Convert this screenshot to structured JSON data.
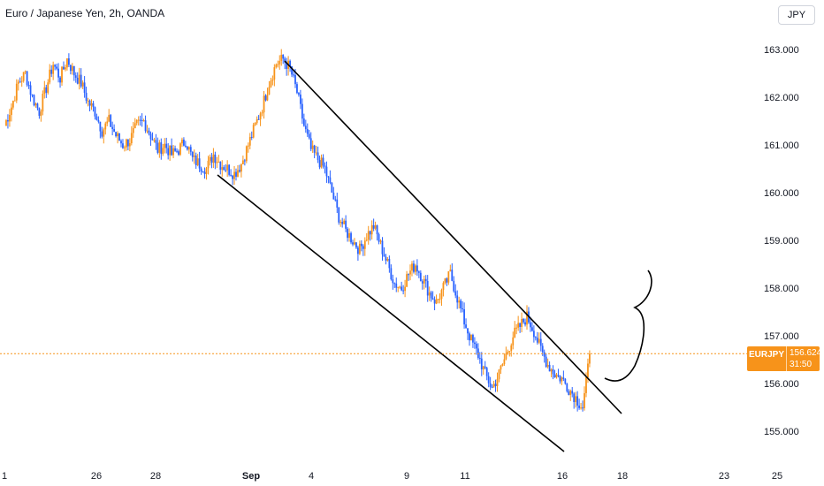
{
  "header": {
    "title": "Euro / Japanese Yen, 2h, OANDA"
  },
  "currency_button": {
    "label": "JPY"
  },
  "price_tag": {
    "symbol": "EURJPY",
    "price": "156.624",
    "countdown": "31:50"
  },
  "colors": {
    "up": "#f7931a",
    "down": "#2962ff",
    "trendline": "#000000",
    "price_line": "#f7931a",
    "axis_text": "#131722"
  },
  "chart_data": {
    "type": "candlestick",
    "symbol": "EURJPY",
    "timeframe": "2h",
    "last_price": 156.624,
    "y_ticks": [
      "163.000",
      "162.000",
      "161.000",
      "160.000",
      "159.000",
      "158.000",
      "157.000",
      "156.000",
      "155.000"
    ],
    "ylim": [
      154.7,
      163.5
    ],
    "x_ticks": [
      "1",
      "26",
      "28",
      "Sep",
      "4",
      "9",
      "11",
      "16",
      "18",
      "23",
      "25"
    ],
    "close_path": [
      [
        0,
        161.4
      ],
      [
        4,
        161.8
      ],
      [
        8,
        162.3
      ],
      [
        12,
        162.5
      ],
      [
        16,
        162.0
      ],
      [
        20,
        161.7
      ],
      [
        24,
        162.2
      ],
      [
        28,
        162.7
      ],
      [
        32,
        162.4
      ],
      [
        36,
        162.8
      ],
      [
        40,
        162.5
      ],
      [
        44,
        162.3
      ],
      [
        48,
        161.9
      ],
      [
        52,
        161.7
      ],
      [
        56,
        161.3
      ],
      [
        60,
        161.5
      ],
      [
        64,
        161.2
      ],
      [
        68,
        161.0
      ],
      [
        72,
        161.1
      ],
      [
        76,
        161.4
      ],
      [
        80,
        161.5
      ],
      [
        84,
        161.2
      ],
      [
        88,
        160.9
      ],
      [
        92,
        161.0
      ],
      [
        96,
        160.8
      ],
      [
        100,
        160.9
      ],
      [
        104,
        161.1
      ],
      [
        108,
        160.7
      ],
      [
        112,
        160.6
      ],
      [
        116,
        160.5
      ],
      [
        120,
        160.8
      ],
      [
        124,
        160.6
      ],
      [
        128,
        160.5
      ],
      [
        132,
        160.4
      ],
      [
        136,
        160.6
      ],
      [
        140,
        161.0
      ],
      [
        144,
        161.4
      ],
      [
        148,
        161.8
      ],
      [
        152,
        162.3
      ],
      [
        156,
        162.7
      ],
      [
        160,
        162.8
      ],
      [
        164,
        162.6
      ],
      [
        168,
        162.1
      ],
      [
        172,
        161.4
      ],
      [
        176,
        160.9
      ],
      [
        180,
        160.7
      ],
      [
        184,
        160.5
      ],
      [
        188,
        160.0
      ],
      [
        192,
        159.5
      ],
      [
        196,
        159.2
      ],
      [
        200,
        159.0
      ],
      [
        204,
        158.8
      ],
      [
        208,
        159.1
      ],
      [
        212,
        159.3
      ],
      [
        216,
        158.9
      ],
      [
        220,
        158.5
      ],
      [
        224,
        158.1
      ],
      [
        228,
        158.0
      ],
      [
        232,
        158.3
      ],
      [
        236,
        158.5
      ],
      [
        240,
        158.2
      ],
      [
        244,
        157.9
      ],
      [
        248,
        157.7
      ],
      [
        252,
        158.0
      ],
      [
        256,
        158.3
      ],
      [
        260,
        157.8
      ],
      [
        264,
        157.3
      ],
      [
        268,
        156.9
      ],
      [
        272,
        156.6
      ],
      [
        276,
        156.2
      ],
      [
        280,
        155.9
      ],
      [
        284,
        156.2
      ],
      [
        288,
        156.6
      ],
      [
        292,
        157.0
      ],
      [
        296,
        157.2
      ],
      [
        300,
        157.4
      ],
      [
        304,
        157.1
      ],
      [
        308,
        156.7
      ],
      [
        312,
        156.4
      ],
      [
        316,
        156.2
      ],
      [
        320,
        156.1
      ],
      [
        324,
        155.9
      ],
      [
        328,
        155.7
      ],
      [
        332,
        155.5
      ],
      [
        334,
        156.0
      ],
      [
        336,
        156.624
      ]
    ],
    "annotations": [
      "upper trendline",
      "lower trendline",
      "curly brace"
    ]
  }
}
